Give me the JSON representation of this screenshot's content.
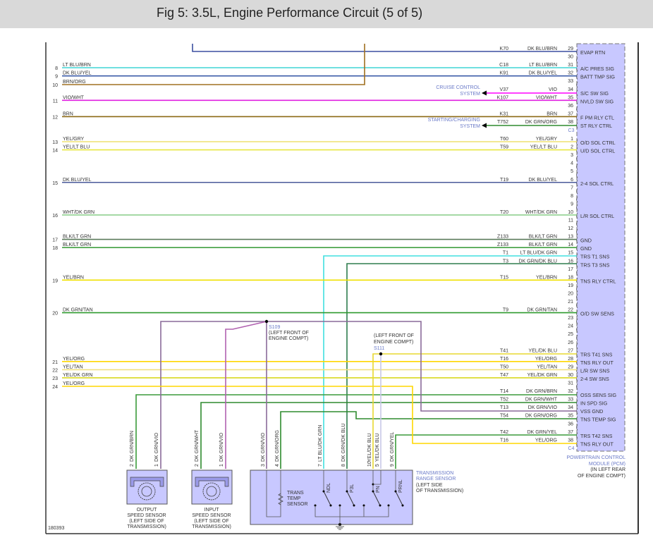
{
  "title": "Fig 5: 3.5L, Engine Performance Circuit (5 of 5)",
  "figure_id": "180393",
  "pcm": {
    "name_line1": "POWERTRAIN CONTROL",
    "name_line2": "MODULE (PCM)",
    "loc_line1": "(IN LEFT REAR",
    "loc_line2": "OF ENGINE COMPT)",
    "connectors": [
      "C3",
      "C4"
    ],
    "fill": "#c8c8ff",
    "pins": [
      {
        "conn": "C3",
        "pin": "29",
        "func": "EVAP RTN"
      },
      {
        "conn": "C3",
        "pin": "30",
        "func": ""
      },
      {
        "conn": "C3",
        "pin": "31",
        "func": "A/C PRES SIG"
      },
      {
        "conn": "C3",
        "pin": "32",
        "func": "BATT TMP SIG"
      },
      {
        "conn": "C3",
        "pin": "33",
        "func": ""
      },
      {
        "conn": "C3",
        "pin": "34",
        "func": "S/C SW SIG"
      },
      {
        "conn": "C3",
        "pin": "35",
        "func": "NVLD SW SIG"
      },
      {
        "conn": "C3",
        "pin": "36",
        "func": ""
      },
      {
        "conn": "C3",
        "pin": "37",
        "func": "F PM RLY CTL"
      },
      {
        "conn": "C3",
        "pin": "38",
        "func": "ST RLY CTRL"
      },
      {
        "conn": "C4",
        "pin": "1",
        "func": "O/D SOL CTRL"
      },
      {
        "conn": "C4",
        "pin": "2",
        "func": "U/D SOL CTRL"
      },
      {
        "conn": "C4",
        "pin": "3",
        "func": ""
      },
      {
        "conn": "C4",
        "pin": "4",
        "func": ""
      },
      {
        "conn": "C4",
        "pin": "5",
        "func": ""
      },
      {
        "conn": "C4",
        "pin": "6",
        "func": "2-4 SOL CTRL"
      },
      {
        "conn": "C4",
        "pin": "7",
        "func": ""
      },
      {
        "conn": "C4",
        "pin": "8",
        "func": ""
      },
      {
        "conn": "C4",
        "pin": "9",
        "func": ""
      },
      {
        "conn": "C4",
        "pin": "10",
        "func": "L/R SOL CTRL"
      },
      {
        "conn": "C4",
        "pin": "11",
        "func": ""
      },
      {
        "conn": "C4",
        "pin": "12",
        "func": ""
      },
      {
        "conn": "C4",
        "pin": "13",
        "func": "GND"
      },
      {
        "conn": "C4",
        "pin": "14",
        "func": "GND"
      },
      {
        "conn": "C4",
        "pin": "15",
        "func": "TRS T1 SNS"
      },
      {
        "conn": "C4",
        "pin": "16",
        "func": "TRS T3 SNS"
      },
      {
        "conn": "C4",
        "pin": "17",
        "func": ""
      },
      {
        "conn": "C4",
        "pin": "18",
        "func": "TNS RLY CTRL"
      },
      {
        "conn": "C4",
        "pin": "19",
        "func": ""
      },
      {
        "conn": "C4",
        "pin": "20",
        "func": ""
      },
      {
        "conn": "C4",
        "pin": "21",
        "func": ""
      },
      {
        "conn": "C4",
        "pin": "22",
        "func": "O/D SW SENS"
      },
      {
        "conn": "C4",
        "pin": "23",
        "func": ""
      },
      {
        "conn": "C4",
        "pin": "24",
        "func": ""
      },
      {
        "conn": "C4",
        "pin": "25",
        "func": ""
      },
      {
        "conn": "C4",
        "pin": "26",
        "func": ""
      },
      {
        "conn": "C4",
        "pin": "27",
        "func": "TRS T41 SNS"
      },
      {
        "conn": "C4",
        "pin": "28",
        "func": "TNS RLY OUT"
      },
      {
        "conn": "C4",
        "pin": "29",
        "func": "L/R SW SNS"
      },
      {
        "conn": "C4",
        "pin": "30",
        "func": "2-4 SW SNS"
      },
      {
        "conn": "C4",
        "pin": "31",
        "func": ""
      },
      {
        "conn": "C4",
        "pin": "32",
        "func": "OSS SENS SIG"
      },
      {
        "conn": "C4",
        "pin": "33",
        "func": "IN SPD SIG"
      },
      {
        "conn": "C4",
        "pin": "34",
        "func": "VSS GND"
      },
      {
        "conn": "C4",
        "pin": "35",
        "func": "TNS TEMP SIG"
      },
      {
        "conn": "C4",
        "pin": "36",
        "func": ""
      },
      {
        "conn": "C4",
        "pin": "37",
        "func": "TRS T42 SNS"
      },
      {
        "conn": "C4",
        "pin": "38",
        "func": "TNS RLY OUT"
      }
    ]
  },
  "wires": [
    {
      "left_num": "",
      "left_label": "",
      "circuit": "K70",
      "color": "DK BLU/BRN",
      "conn": "C3",
      "pin": 29,
      "hex": "#3b4fa0"
    },
    {
      "left_num": "8",
      "left_label": "LT BLU/BRN",
      "circuit": "C18",
      "color": "LT BLU/BRN",
      "conn": "C3",
      "pin": 31,
      "hex": "#4dd8d8"
    },
    {
      "left_num": "9",
      "left_label": "DK BLU/YEL",
      "circuit": "K91",
      "color": "DK BLU/YEL",
      "conn": "C3",
      "pin": 32,
      "hex": "#3b5ba8"
    },
    {
      "left_num": "10",
      "left_label": "BRN/ORG",
      "circuit": "",
      "color": "",
      "conn": "",
      "pin": null,
      "hex": "#a07020"
    },
    {
      "left_num": "",
      "left_label": "",
      "circuit": "V37",
      "color": "VIO",
      "conn": "C3",
      "pin": 34,
      "hex": "#ff00ff"
    },
    {
      "left_num": "11",
      "left_label": "VIO/WHT",
      "circuit": "K107",
      "color": "VIO/WHT",
      "conn": "C3",
      "pin": 35,
      "hex": "#e020e0"
    },
    {
      "left_num": "12",
      "left_label": "BRN",
      "circuit": "K31",
      "color": "BRN",
      "conn": "C3",
      "pin": 37,
      "hex": "#8b6914"
    },
    {
      "left_num": "",
      "left_label": "",
      "circuit": "T752",
      "color": "DK GRN/ORG",
      "conn": "C3",
      "pin": 38,
      "hex": "#2e8b2e"
    },
    {
      "left_num": "13",
      "left_label": "YEL/GRY",
      "circuit": "T60",
      "color": "YEL/GRY",
      "conn": "C4",
      "pin": 1,
      "hex": "#eee070"
    },
    {
      "left_num": "14",
      "left_label": "YEL/LT BLU",
      "circuit": "T59",
      "color": "YEL/LT BLU",
      "conn": "C4",
      "pin": 2,
      "hex": "#e8e840"
    },
    {
      "left_num": "15",
      "left_label": "DK BLU/YEL",
      "circuit": "T19",
      "color": "DK BLU/YEL",
      "conn": "C4",
      "pin": 6,
      "hex": "#4a5a9a"
    },
    {
      "left_num": "16",
      "left_label": "WHT/DK GRN",
      "circuit": "T20",
      "color": "WHT/DK GRN",
      "conn": "C4",
      "pin": 10,
      "hex": "#90d090"
    },
    {
      "left_num": "17",
      "left_label": "BLK/LT GRN",
      "circuit": "Z133",
      "color": "BLK/LT GRN",
      "conn": "C4",
      "pin": 13,
      "hex": "#5a7a5a"
    },
    {
      "left_num": "18",
      "left_label": "BLK/LT GRN",
      "circuit": "Z133",
      "color": "BLK/LT GRN",
      "conn": "C4",
      "pin": 14,
      "hex": "#40a040"
    },
    {
      "left_num": "",
      "left_label": "",
      "circuit": "T1",
      "color": "LT BLU/DK GRN",
      "conn": "C4",
      "pin": 15,
      "hex": "#40e0e0"
    },
    {
      "left_num": "",
      "left_label": "",
      "circuit": "T3",
      "color": "DK GRN/DK BLU",
      "conn": "C4",
      "pin": 16,
      "hex": "#2e7d4e"
    },
    {
      "left_num": "19",
      "left_label": "YEL/BRN",
      "circuit": "T15",
      "color": "YEL/BRN",
      "conn": "C4",
      "pin": 18,
      "hex": "#f0e000"
    },
    {
      "left_num": "20",
      "left_label": "DK GRN/TAN",
      "circuit": "T9",
      "color": "DK GRN/TAN",
      "conn": "C4",
      "pin": 22,
      "hex": "#2e9a2e"
    },
    {
      "left_num": "",
      "left_label": "",
      "circuit": "T41",
      "color": "YEL/DK BLU",
      "conn": "C4",
      "pin": 27,
      "hex": "#e8d830"
    },
    {
      "left_num": "21",
      "left_label": "YEL/ORG",
      "circuit": "T16",
      "color": "YEL/ORG",
      "conn": "C4",
      "pin": 28,
      "hex": "#ffd700"
    },
    {
      "left_num": "22",
      "left_label": "YEL/TAN",
      "circuit": "T50",
      "color": "YEL/TAN",
      "conn": "C4",
      "pin": 29,
      "hex": "#f0e080"
    },
    {
      "left_num": "23",
      "left_label": "YEL/DK GRN",
      "circuit": "T47",
      "color": "YEL/DK GRN",
      "conn": "C4",
      "pin": 30,
      "hex": "#d8d820"
    },
    {
      "left_num": "",
      "left_label": "",
      "circuit": "T14",
      "color": "DK GRN/BRN",
      "conn": "C4",
      "pin": 32,
      "hex": "#3a9a3a"
    },
    {
      "left_num": "",
      "left_label": "",
      "circuit": "T52",
      "color": "DK GRN/WHT",
      "conn": "C4",
      "pin": 33,
      "hex": "#2e8a2e"
    },
    {
      "left_num": "",
      "left_label": "",
      "circuit": "T13",
      "color": "DK GRN/VIO",
      "conn": "C4",
      "pin": 34,
      "hex": "#8a6a9a"
    },
    {
      "left_num": "",
      "left_label": "",
      "circuit": "T54",
      "color": "DK GRN/ORG",
      "conn": "C4",
      "pin": 35,
      "hex": "#2e8b2e"
    },
    {
      "left_num": "",
      "left_label": "",
      "circuit": "T42",
      "color": "DK GRN/YEL",
      "conn": "C4",
      "pin": 37,
      "hex": "#3a9a3a"
    },
    {
      "left_num": "24",
      "left_label": "YEL/ORG",
      "circuit": "T16",
      "color": "YEL/ORG",
      "conn": "C4",
      "pin": 38,
      "hex": "#ffd700"
    }
  ],
  "destinations": {
    "cruise": [
      "CRUISE CONTROL",
      "SYSTEM"
    ],
    "starting": [
      "STARTING/CHARGING",
      "SYSTEM"
    ]
  },
  "splices": {
    "s109": {
      "id": "S109",
      "loc": [
        "(LEFT FRONT OF",
        "ENGINE COMPT)"
      ]
    },
    "s111": {
      "id": "S111",
      "loc": [
        "(LEFT FRONT OF",
        "ENGINE COMPT)"
      ]
    }
  },
  "output_sensor": {
    "lines": [
      "OUTPUT",
      "SPEED SENSOR",
      "(LEFT SIDE OF",
      "TRANSMISSION)"
    ],
    "pins": [
      {
        "num": "2",
        "label": "DK GRN/BRN"
      },
      {
        "num": "1",
        "label": "DK GRN/VIO"
      }
    ]
  },
  "input_sensor": {
    "lines": [
      "INPUT",
      "SPEED SENSOR",
      "(LEFT SIDE OF",
      "TRANSMISSION)"
    ],
    "pins": [
      {
        "num": "2",
        "label": "DK GRN/WHT"
      },
      {
        "num": "1",
        "label": "DK GRN/VIO"
      }
    ]
  },
  "trs": {
    "name": [
      "TRANSMISSION",
      "RANGE SENSOR"
    ],
    "loc": [
      "(LEFT SIDE",
      "OF TRANSMISSION)"
    ],
    "temp_sensor": [
      "TRANS",
      "TEMP",
      "SENSOR"
    ],
    "pins": [
      {
        "num": "3",
        "label": "DK GRN/VIO"
      },
      {
        "num": "4",
        "label": "DK GRN/ORG"
      },
      {
        "num": "7",
        "label": "LT BLU/DK GRN"
      },
      {
        "num": "8",
        "label": "DK GRN/DK BLU"
      },
      {
        "num": "10",
        "label": "YEL/DK BLU"
      },
      {
        "num": "5",
        "label": "YEL/DK BLU"
      },
      {
        "num": "9",
        "label": "DK GRN/YEL"
      }
    ],
    "switches": [
      "NDL",
      "P3L",
      "PN",
      "PRNL"
    ]
  }
}
